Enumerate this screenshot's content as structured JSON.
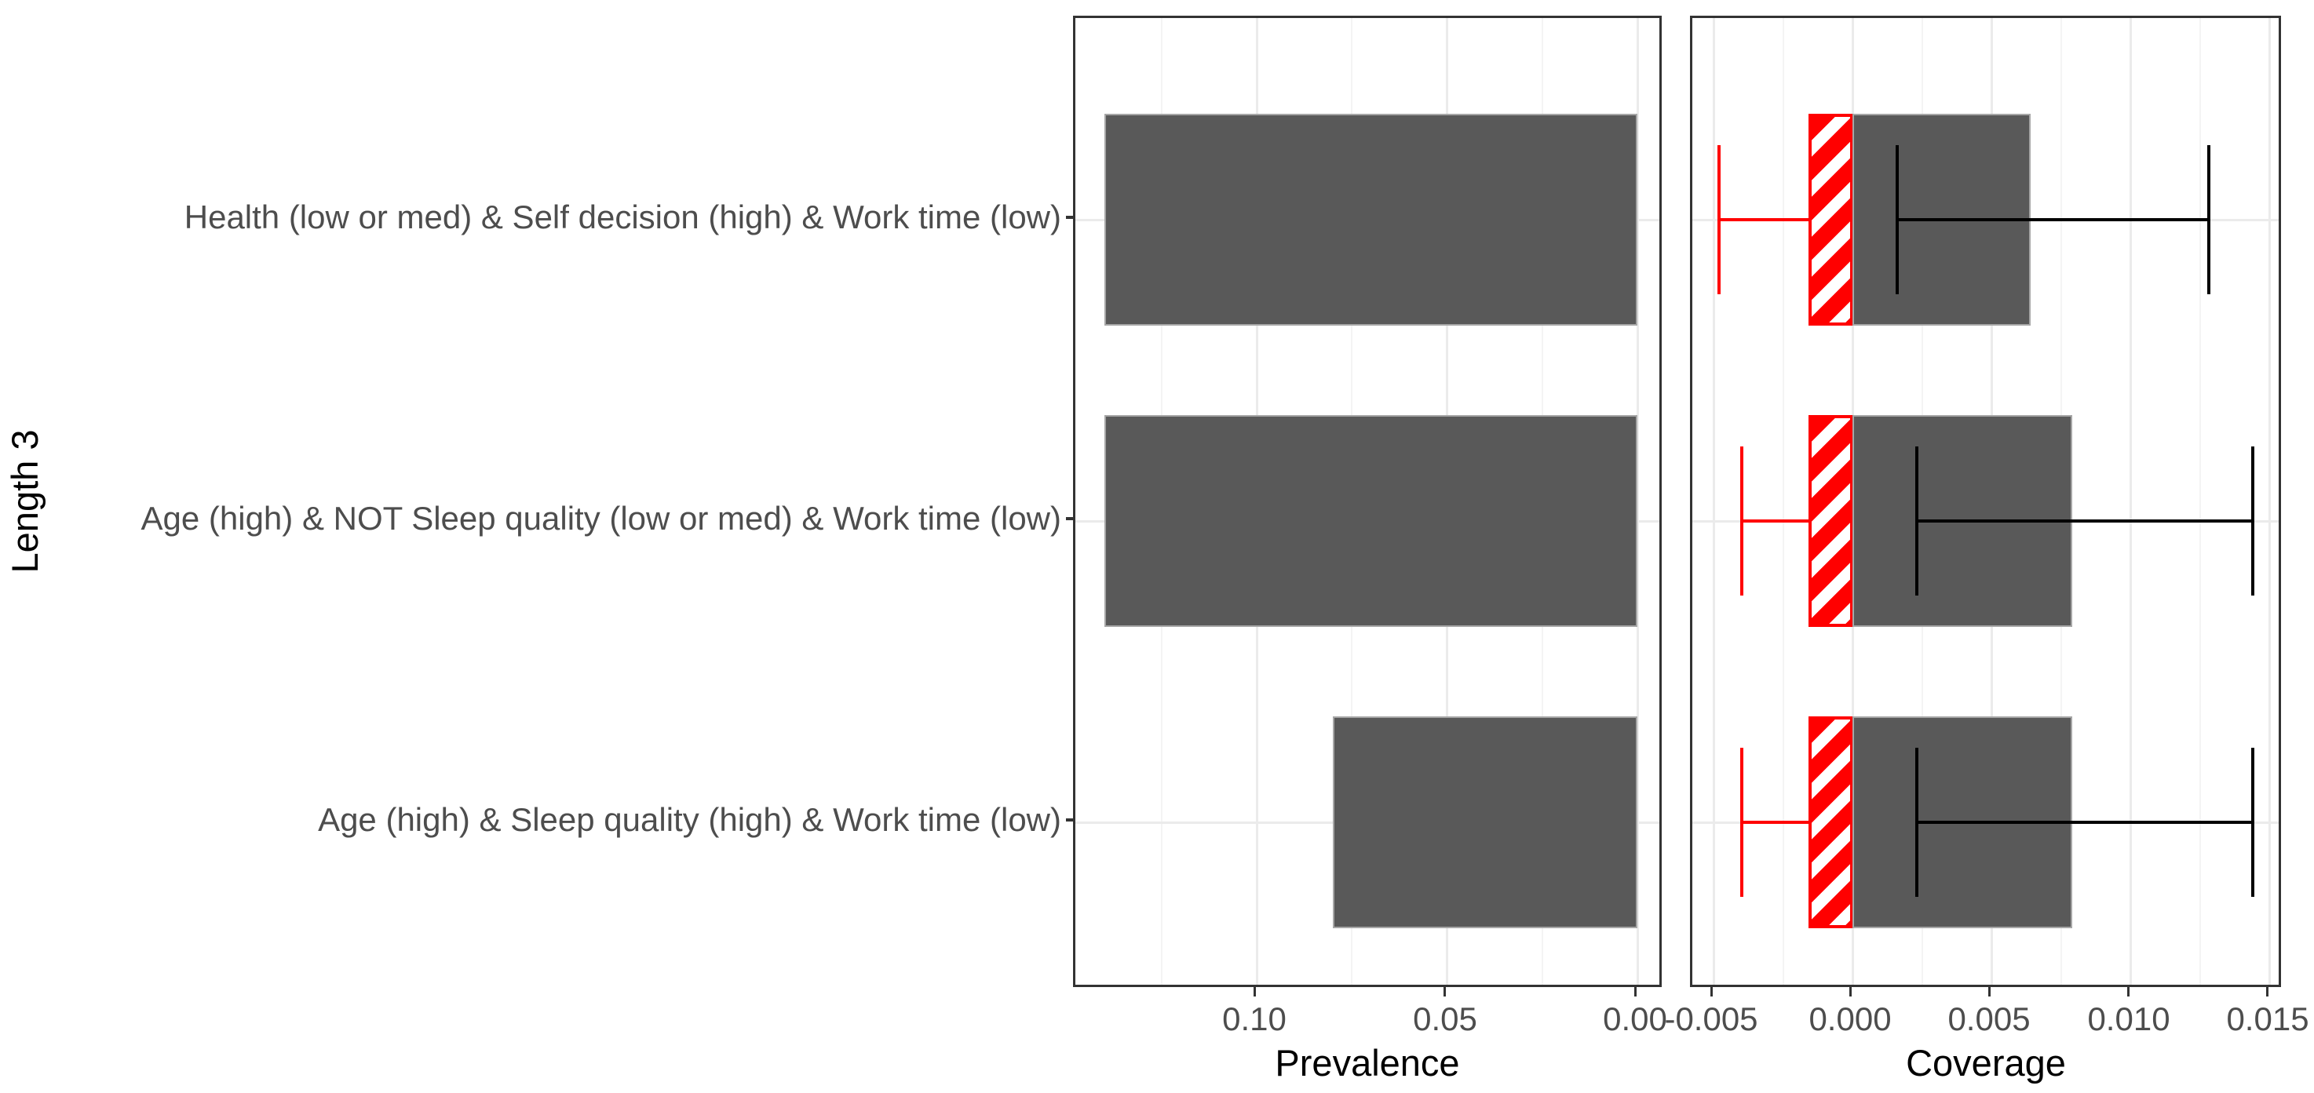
{
  "figure": {
    "background": "#ffffff",
    "bar_fill": "#595959",
    "bar_edge": "#a6a6a6",
    "negative_color": "#ff0000",
    "errorbar_color": "#000000",
    "grid_major_color": "#ebebeb",
    "grid_minor_color": "#f4f4f4",
    "panel_border_color": "#333333",
    "axis_text_color": "#4d4d4d",
    "axis_title_color": "#000000"
  },
  "y_axis": {
    "title": "Length 3",
    "categories": [
      "Health (low or med) & Self decision (high) & Work time (low)",
      "Age (high) & NOT Sleep quality (low or med) & Work time (low)",
      "Age (high) & Sleep quality (high) & Work time (low)"
    ]
  },
  "chart_data": [
    {
      "type": "bar",
      "orientation": "horizontal",
      "title": "Prevalence",
      "xlabel": "Prevalence",
      "axis_reversed": true,
      "xlim": [
        0.1477,
        -0.007
      ],
      "x_ticks": [
        0.1,
        0.05,
        0.0
      ],
      "x_tick_labels": [
        "0.10",
        "0.05",
        "0.00"
      ],
      "x_minor_ticks": [
        0.125,
        0.075,
        0.025
      ],
      "grid": true,
      "categories": [
        "Health (low or med) & Self decision (high) & Work time (low)",
        "Age (high) & NOT Sleep quality (low or med) & Work time (low)",
        "Age (high) & Sleep quality (high) & Work time (low)"
      ],
      "values": [
        0.14,
        0.14,
        0.08
      ]
    },
    {
      "type": "bar",
      "orientation": "horizontal",
      "title": "Coverage",
      "xlabel": "Coverage",
      "axis_reversed": false,
      "xlim": [
        -0.00577,
        0.01549
      ],
      "x_ticks": [
        -0.005,
        0.0,
        0.005,
        0.01,
        0.015
      ],
      "x_tick_labels": [
        "-0.005",
        "0.000",
        "0.005",
        "0.010",
        "0.015"
      ],
      "x_minor_ticks": [
        -0.0025,
        0.0025,
        0.0075,
        0.0125
      ],
      "grid": true,
      "categories": [
        "Health (low or med) & Self decision (high) & Work time (low)",
        "Age (high) & NOT Sleep quality (low or med) & Work time (low)",
        "Age (high) & Sleep quality (high) & Work time (low)"
      ],
      "series": [
        {
          "name": "coverage",
          "style": "solid-grey-bar",
          "values": [
            0.0064,
            0.0079,
            0.0079
          ],
          "ci_low": [
            0.0016,
            0.0023,
            0.0023
          ],
          "ci_high": [
            0.0128,
            0.0144,
            0.0144
          ]
        },
        {
          "name": "negative-coverage",
          "style": "red-hatched-bar",
          "values": [
            -0.0016,
            -0.0016,
            -0.0016
          ],
          "ci_low": [
            -0.0048,
            -0.004,
            -0.004
          ],
          "ci_high": [
            0.0,
            0.0,
            0.0
          ]
        }
      ]
    }
  ]
}
